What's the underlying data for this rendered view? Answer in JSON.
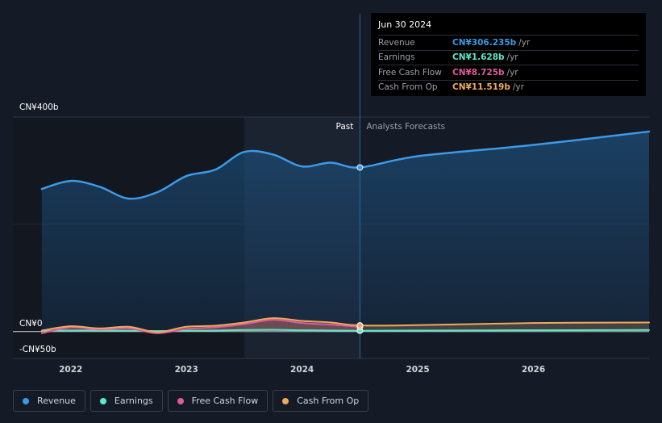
{
  "tooltip": {
    "date": "Jun 30 2024",
    "rows": [
      {
        "label": "Revenue",
        "value": "CN¥306.235b",
        "unit": "/yr",
        "color": "#3b9ae8"
      },
      {
        "label": "Earnings",
        "value": "CN¥1.628b",
        "unit": "/yr",
        "color": "#5ce8c9"
      },
      {
        "label": "Free Cash Flow",
        "value": "CN¥8.725b",
        "unit": "/yr",
        "color": "#e05c9a"
      },
      {
        "label": "Cash From Op",
        "value": "CN¥11.519b",
        "unit": "/yr",
        "color": "#f0a95c"
      }
    ]
  },
  "legend": [
    {
      "label": "Revenue",
      "color": "#3b9ae8"
    },
    {
      "label": "Earnings",
      "color": "#5ce8c9"
    },
    {
      "label": "Free Cash Flow",
      "color": "#e05c9a"
    },
    {
      "label": "Cash From Op",
      "color": "#f0a95c"
    }
  ],
  "chart_data": {
    "type": "area",
    "title": "",
    "xlabel": "",
    "ylabel": "",
    "y_unit": "CN¥b",
    "ylim": [
      -50,
      400
    ],
    "xlim": [
      2021.5,
      2027.0
    ],
    "y_ticks": [
      {
        "value": 400,
        "label": "CN¥400b"
      },
      {
        "value": 0,
        "label": "CN¥0"
      },
      {
        "value": -50,
        "label": "-CN¥50b"
      }
    ],
    "x_ticks": [
      {
        "value": 2022,
        "label": "2022"
      },
      {
        "value": 2023,
        "label": "2023"
      },
      {
        "value": 2024,
        "label": "2024"
      },
      {
        "value": 2025,
        "label": "2025"
      },
      {
        "value": 2026,
        "label": "2026"
      }
    ],
    "past_label": "Past",
    "forecast_label": "Analysts Forecasts",
    "divider_x": 2024.5,
    "highlight_start_x": 2023.5,
    "series": [
      {
        "name": "Revenue",
        "color": "#3b9ae8",
        "x": [
          2021.75,
          2022.0,
          2022.25,
          2022.5,
          2022.75,
          2023.0,
          2023.25,
          2023.5,
          2023.75,
          2024.0,
          2024.25,
          2024.5,
          2025.0,
          2026.0,
          2027.0
        ],
        "y": [
          266,
          281,
          270,
          248,
          260,
          290,
          302,
          335,
          330,
          308,
          315,
          306,
          327,
          348,
          373
        ]
      },
      {
        "name": "Earnings",
        "color": "#5ce8c9",
        "x": [
          2021.75,
          2022.0,
          2022.25,
          2022.5,
          2022.75,
          2023.0,
          2023.25,
          2023.5,
          2023.75,
          2024.0,
          2024.25,
          2024.5,
          2025.0,
          2026.0,
          2027.0
        ],
        "y": [
          1.5,
          2,
          2,
          1.5,
          1,
          1.5,
          2,
          3,
          3.5,
          2.5,
          2,
          1.628,
          2,
          2.5,
          3
        ]
      },
      {
        "name": "Free Cash Flow",
        "color": "#e05c9a",
        "x": [
          2021.75,
          2022.0,
          2022.25,
          2022.5,
          2022.75,
          2023.0,
          2023.25,
          2023.5,
          2023.75,
          2024.0,
          2024.25,
          2024.5
        ],
        "y": [
          -3,
          8,
          4,
          6,
          -3,
          5,
          8,
          14,
          22,
          16,
          13,
          8.725
        ]
      },
      {
        "name": "Cash From Op",
        "color": "#f0a95c",
        "x": [
          2021.75,
          2022.0,
          2022.25,
          2022.5,
          2022.75,
          2023.0,
          2023.25,
          2023.5,
          2023.75,
          2024.0,
          2024.25,
          2024.5,
          2025.0,
          2026.0,
          2027.0
        ],
        "y": [
          2,
          10,
          6,
          9,
          -1,
          9,
          11,
          17,
          25,
          20,
          17,
          11.519,
          12,
          16,
          17
        ]
      }
    ]
  }
}
